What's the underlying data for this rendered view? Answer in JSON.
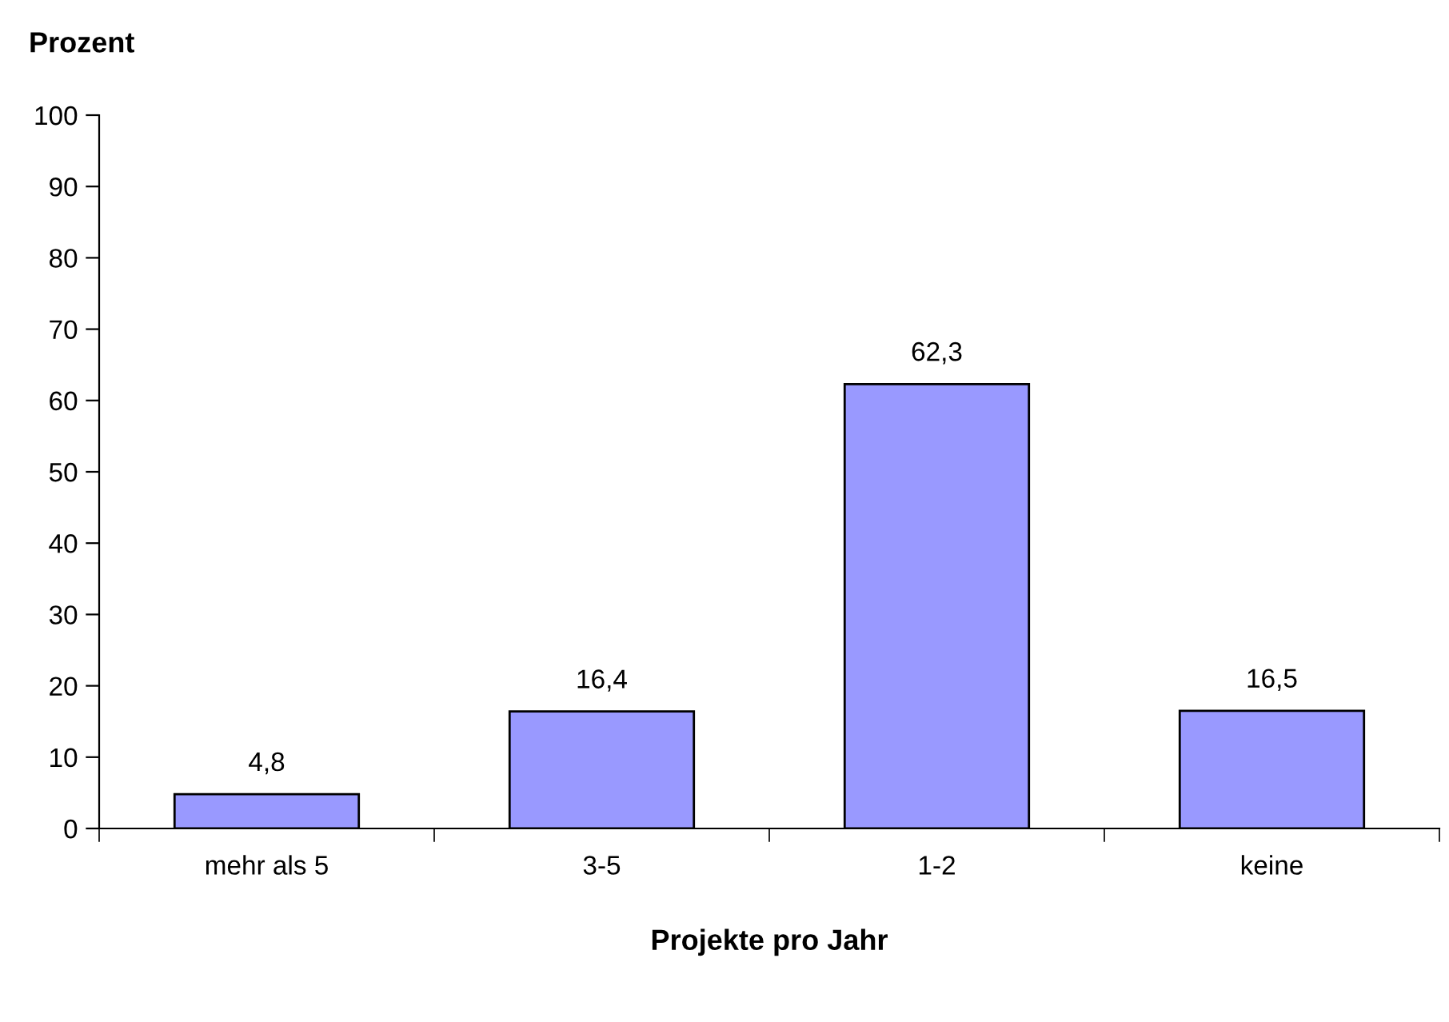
{
  "chart_data": {
    "type": "bar",
    "ylabel": "Prozent",
    "xlabel": "Projekte pro Jahr",
    "categories": [
      "mehr als 5",
      "3-5",
      "1-2",
      "keine"
    ],
    "values": [
      4.8,
      16.4,
      62.3,
      16.5
    ],
    "value_labels": [
      "4,8",
      "16,4",
      "62,3",
      "16,5"
    ],
    "color": "#9999ff",
    "ylim": [
      0,
      100
    ],
    "yticks": [
      0,
      10,
      20,
      30,
      40,
      50,
      60,
      70,
      80,
      90,
      100
    ],
    "grid": false,
    "legend": false
  }
}
